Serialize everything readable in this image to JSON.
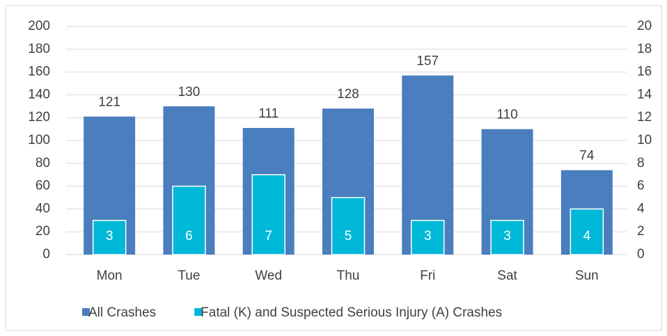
{
  "chart_data": {
    "type": "bar",
    "categories": [
      "Mon",
      "Tue",
      "Wed",
      "Thu",
      "Fri",
      "Sat",
      "Sun"
    ],
    "series": [
      {
        "name": "All Crashes",
        "color": "#4a7ebe",
        "values": [
          121,
          130,
          111,
          128,
          157,
          110,
          74
        ]
      },
      {
        "name": "Fatal (K) and Suspected Serious Injury (A) Crashes",
        "color": "#00b8d8",
        "axis": "y2",
        "values": [
          3,
          6,
          7,
          5,
          3,
          3,
          4
        ]
      }
    ],
    "ylim": [
      0,
      200
    ],
    "yticks": [
      0,
      20,
      40,
      60,
      80,
      100,
      120,
      140,
      160,
      180,
      200
    ],
    "y2lim": [
      0,
      20
    ],
    "y2ticks": [
      0,
      2,
      4,
      6,
      8,
      10,
      12,
      14,
      16,
      18,
      20
    ],
    "grid": true,
    "legend": "bottom"
  }
}
